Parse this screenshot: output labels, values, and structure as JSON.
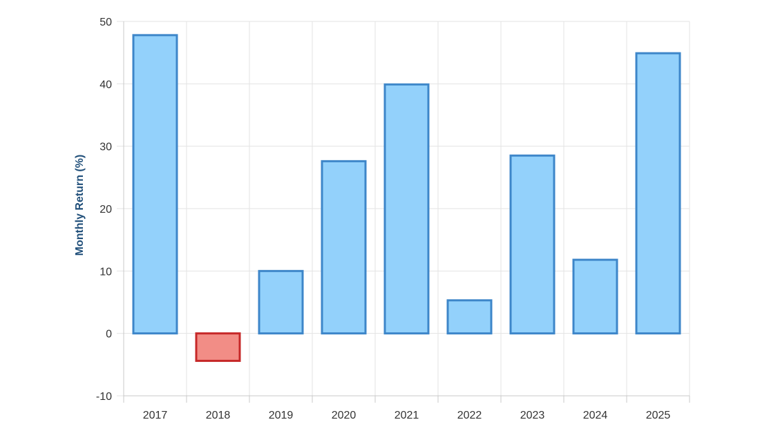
{
  "chart_data": {
    "type": "bar",
    "title": "",
    "xlabel": "",
    "ylabel": "Monthly Return (%)",
    "categories": [
      "2017",
      "2018",
      "2019",
      "2020",
      "2021",
      "2022",
      "2023",
      "2024",
      "2025"
    ],
    "values": [
      47.8,
      -4.4,
      10.0,
      27.6,
      39.9,
      5.3,
      28.5,
      11.8,
      44.9
    ],
    "ylim": [
      -10,
      50
    ],
    "yticks": [
      "-10",
      "0",
      "10",
      "20",
      "30",
      "40",
      "50"
    ],
    "grid": true,
    "legend": "none",
    "colors": {
      "positive_fill": "#93d1fb",
      "positive_stroke": "#3d86c9",
      "negative_fill": "#f28d86",
      "negative_stroke": "#c62828",
      "grid": "#e3e3e3",
      "axis": "#c8c8c8",
      "ylabel": "#1f4e79"
    }
  }
}
